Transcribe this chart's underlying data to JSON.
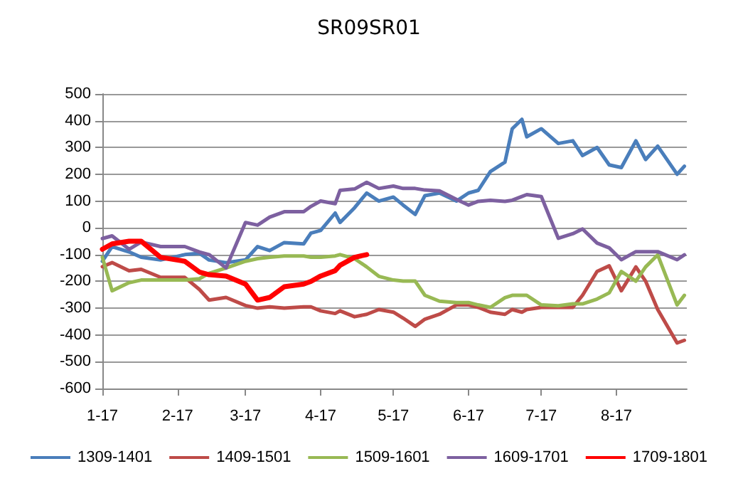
{
  "chart_data": {
    "type": "line",
    "title": "SR09SR01",
    "x": [
      "--01-17",
      "--01-21",
      "--01-28",
      "--02-02",
      "--02-10",
      "--02-20",
      "--02-26",
      "--03-02",
      "--03-09",
      "--03-17",
      "--03-22",
      "--03-27",
      "--04-02",
      "--04-10",
      "--04-13",
      "--04-17",
      "--04-23",
      "--04-25",
      "--05-01",
      "--05-06",
      "--05-11",
      "--05-17",
      "--05-21",
      "--05-26",
      "--05-30",
      "--06-05",
      "--06-12",
      "--06-17",
      "--06-21",
      "--06-26",
      "--07-02",
      "--07-05",
      "--07-09",
      "--07-11",
      "--07-17",
      "--07-24",
      "--07-30",
      "--08-03",
      "--08-09",
      "--08-14",
      "--08-19",
      "--08-25",
      "--08-29",
      "--09-03",
      "--09-11",
      "--09-14"
    ],
    "series": [
      {
        "name": "1309-1401",
        "color": "#4a7ebb",
        "values": [
          -125,
          -70,
          -90,
          -110,
          -120,
          -100,
          -95,
          -120,
          -130,
          -120,
          -70,
          -85,
          -55,
          -60,
          -20,
          -10,
          55,
          20,
          75,
          130,
          100,
          115,
          85,
          50,
          120,
          130,
          100,
          130,
          140,
          210,
          245,
          370,
          405,
          340,
          370,
          315,
          325,
          270,
          300,
          235,
          225,
          325,
          255,
          305,
          200,
          230
        ]
      },
      {
        "name": "1409-1501",
        "color": "#be4b48",
        "values": [
          -145,
          -130,
          -160,
          -155,
          -185,
          -185,
          -230,
          -270,
          -260,
          -290,
          -300,
          -295,
          -300,
          -295,
          -295,
          -310,
          -320,
          -310,
          -332,
          -323,
          -305,
          -315,
          -337,
          -368,
          -341,
          -323,
          -288,
          -288,
          -297,
          -315,
          -323,
          -305,
          -315,
          -305,
          -297,
          -297,
          -297,
          -252,
          -163,
          -142,
          -235,
          -146,
          -199,
          -305,
          -430,
          -420
        ]
      },
      {
        "name": "1509-1601",
        "color": "#98b954",
        "values": [
          -110,
          -235,
          -205,
          -195,
          -195,
          -195,
          -190,
          -170,
          -150,
          -125,
          -115,
          -110,
          -105,
          -105,
          -110,
          -110,
          -105,
          -100,
          -115,
          -146,
          -181,
          -195,
          -199,
          -199,
          -252,
          -274,
          -279,
          -279,
          -288,
          -297,
          -261,
          -252,
          -252,
          -252,
          -288,
          -291,
          -284,
          -284,
          -266,
          -243,
          -163,
          -199,
          -146,
          -101,
          -288,
          -252
        ]
      },
      {
        "name": "1609-1701",
        "color": "#7d60a0",
        "values": [
          -40,
          -30,
          -80,
          -53,
          -70,
          -70,
          -90,
          -100,
          -150,
          20,
          10,
          40,
          60,
          60,
          80,
          100,
          90,
          140,
          145,
          170,
          147,
          156,
          147,
          147,
          141,
          138,
          106,
          85,
          99,
          103,
          99,
          103,
          117,
          124,
          117,
          -39,
          -22,
          -4,
          -57,
          -75,
          -119,
          -89,
          -89,
          -89,
          -119,
          -101
        ]
      },
      {
        "name": "1709-1801",
        "color": "#ff0000",
        "values": [
          -80,
          -60,
          -50,
          -50,
          -110,
          -125,
          -165,
          -175,
          -180,
          -210,
          -270,
          -260,
          -220,
          -210,
          -200,
          -180,
          -160,
          -140,
          -110,
          -100,
          null,
          null,
          null,
          null,
          null,
          null,
          null,
          null,
          null,
          null,
          null,
          null,
          null,
          null,
          null,
          null,
          null,
          null,
          null,
          null,
          null,
          null,
          null,
          null,
          null,
          null
        ]
      }
    ],
    "xlim": [
      "--01-17",
      "--09-15"
    ],
    "xticks": [
      {
        "value": "--01-17",
        "label": "1-17"
      },
      {
        "value": "--02-17",
        "label": "2-17"
      },
      {
        "value": "--03-17",
        "label": "3-17"
      },
      {
        "value": "--04-17",
        "label": "4-17"
      },
      {
        "value": "--05-17",
        "label": "5-17"
      },
      {
        "value": "--06-17",
        "label": "6-17"
      },
      {
        "value": "--07-17",
        "label": "7-17"
      },
      {
        "value": "--08-17",
        "label": "8-17"
      }
    ],
    "ylim": [
      -600,
      500
    ],
    "yticks": [
      -600,
      -500,
      -400,
      -300,
      -200,
      -100,
      0,
      100,
      200,
      300,
      400,
      500
    ],
    "grid": "y",
    "legend": "bottom",
    "marker": "none",
    "line_style": "solid"
  }
}
